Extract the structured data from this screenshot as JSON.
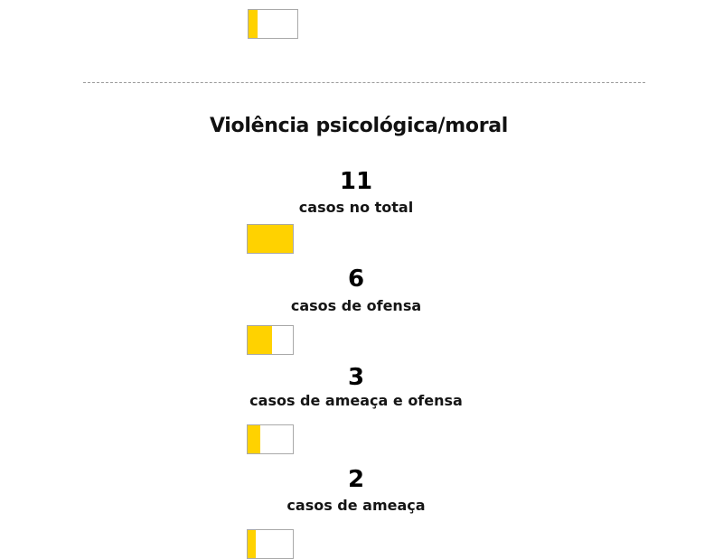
{
  "colors": {
    "fill": "#ffd200",
    "border": "#a9a9a9",
    "divider": "#9a9a9a"
  },
  "top_bar": {
    "fill_fraction": 0.18
  },
  "section": {
    "title": "Violência psicológica/moral"
  },
  "stats": [
    {
      "number": "11",
      "label": "casos no total",
      "fill_fraction": 1.0
    },
    {
      "number": "6",
      "label": "casos de ofensa",
      "fill_fraction": 0.545
    },
    {
      "number": "3",
      "label": "casos de ameaça e ofensa",
      "fill_fraction": 0.273
    },
    {
      "number": "2",
      "label": "casos de ameaça",
      "fill_fraction": 0.18
    }
  ]
}
